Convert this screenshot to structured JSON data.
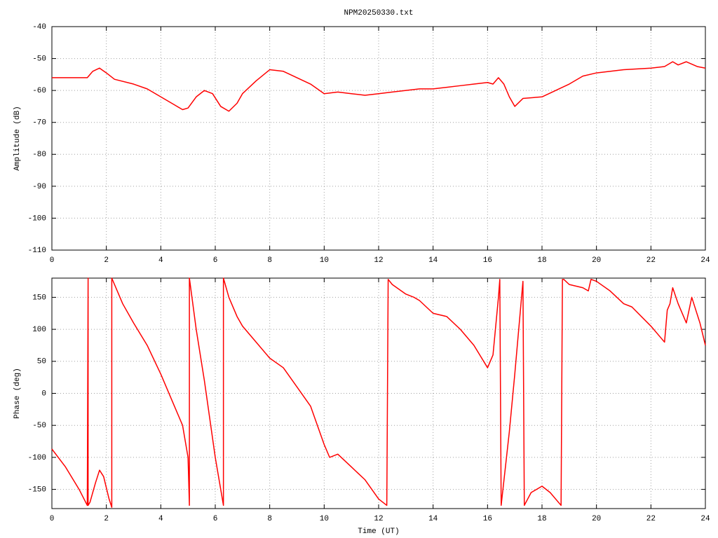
{
  "chart_data": [
    {
      "type": "line",
      "title": "NPM20250330.txt",
      "ylabel": "Amplitude (dB)",
      "color": "#ff0000",
      "grid": true,
      "xlim": [
        0,
        24
      ],
      "xticks": [
        0,
        2,
        4,
        6,
        8,
        10,
        12,
        14,
        16,
        18,
        20,
        22,
        24
      ],
      "ylim": [
        -110,
        -40
      ],
      "yticks": [
        -110,
        -100,
        -90,
        -80,
        -70,
        -60,
        -50,
        -40
      ],
      "x": [
        0,
        1.3,
        1.5,
        1.75,
        2.0,
        2.3,
        3.0,
        3.5,
        4.0,
        4.5,
        4.8,
        5.0,
        5.3,
        5.6,
        5.9,
        6.2,
        6.5,
        6.8,
        7.0,
        7.5,
        8.0,
        8.5,
        9.0,
        9.5,
        10.0,
        10.5,
        11.0,
        11.5,
        12.0,
        12.5,
        13.0,
        13.5,
        14.0,
        14.5,
        15.0,
        15.5,
        16.0,
        16.2,
        16.4,
        16.6,
        16.8,
        17.0,
        17.3,
        18.0,
        18.5,
        19.0,
        19.5,
        20.0,
        21.0,
        22.0,
        22.5,
        22.8,
        23.0,
        23.3,
        23.7,
        24.0
      ],
      "values": [
        -56,
        -56,
        -54,
        -53,
        -54.5,
        -56.5,
        -58,
        -59.5,
        -62,
        -64.5,
        -66,
        -65.5,
        -62,
        -60,
        -61,
        -65,
        -66.5,
        -64,
        -61,
        -57,
        -53.5,
        -54,
        -56,
        -58,
        -61,
        -60.5,
        -61,
        -61.5,
        -61,
        -60.5,
        -60,
        -59.5,
        -59.5,
        -59,
        -58.5,
        -58,
        -57.5,
        -58,
        -56,
        -58,
        -62,
        -65,
        -62.5,
        -62,
        -60,
        -58,
        -55.5,
        -54.5,
        -53.5,
        -53,
        -52.5,
        -51,
        -52,
        -51,
        -52.5,
        -53
      ]
    },
    {
      "type": "line",
      "xlabel": "Time (UT)",
      "ylabel": "Phase (deg)",
      "color": "#ff0000",
      "grid": true,
      "xlim": [
        0,
        24
      ],
      "xticks": [
        0,
        2,
        4,
        6,
        8,
        10,
        12,
        14,
        16,
        18,
        20,
        22,
        24
      ],
      "ylim": [
        -180,
        180
      ],
      "yticks": [
        -150,
        -100,
        -50,
        0,
        50,
        100,
        150
      ],
      "x": [
        0,
        0.5,
        1.0,
        1.3,
        1.33,
        1.33,
        1.4,
        1.6,
        1.75,
        1.9,
        2.1,
        2.2,
        2.2,
        2.6,
        3.0,
        3.5,
        4.0,
        4.5,
        4.8,
        5.0,
        5.05,
        5.05,
        5.3,
        5.6,
        6.0,
        6.3,
        6.3,
        6.5,
        6.8,
        7.0,
        7.5,
        8.0,
        8.5,
        9.0,
        9.5,
        10.0,
        10.2,
        10.5,
        11.0,
        11.5,
        12.0,
        12.3,
        12.35,
        12.5,
        13.0,
        13.3,
        13.5,
        14.0,
        14.5,
        15.0,
        15.5,
        16.0,
        16.2,
        16.4,
        16.45,
        16.5,
        16.8,
        17.0,
        17.3,
        17.35,
        17.6,
        18.0,
        18.3,
        18.7,
        18.75,
        18.8,
        19.0,
        19.5,
        19.7,
        19.8,
        20.0,
        20.5,
        21.0,
        21.3,
        22.0,
        22.4,
        22.5,
        22.6,
        22.7,
        22.8,
        23.0,
        23.3,
        23.5,
        23.8,
        24.0
      ],
      "values": [
        -87,
        -115,
        -150,
        -175,
        180,
        -175,
        -170,
        -140,
        -120,
        -130,
        -165,
        -178,
        180,
        140,
        110,
        75,
        30,
        -20,
        -50,
        -100,
        -175,
        180,
        100,
        20,
        -100,
        -175,
        180,
        150,
        120,
        105,
        80,
        55,
        40,
        10,
        -20,
        -80,
        -100,
        -95,
        -115,
        -135,
        -165,
        -175,
        178,
        170,
        155,
        150,
        145,
        125,
        120,
        100,
        75,
        40,
        60,
        150,
        178,
        -175,
        -60,
        30,
        175,
        -175,
        -155,
        -145,
        -155,
        -175,
        178,
        178,
        170,
        165,
        160,
        178,
        175,
        160,
        140,
        135,
        105,
        85,
        80,
        130,
        140,
        165,
        140,
        110,
        150,
        110,
        75
      ]
    }
  ]
}
